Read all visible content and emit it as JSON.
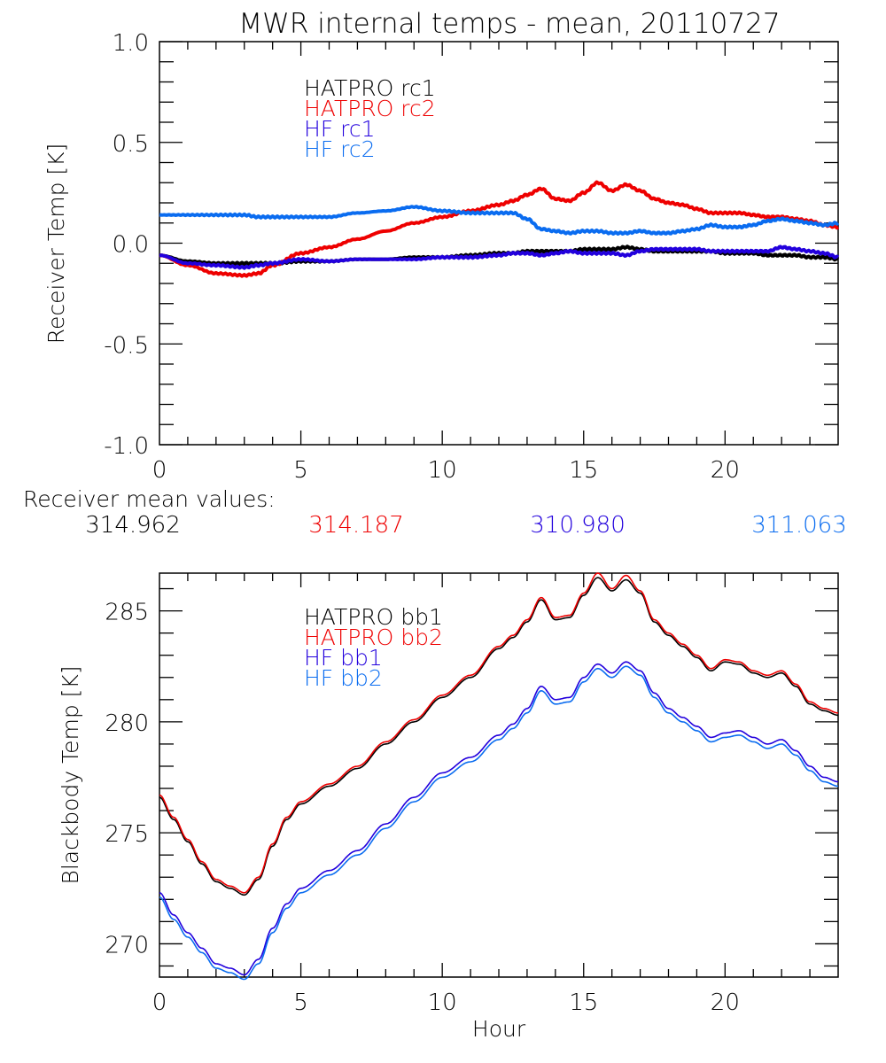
{
  "figure": {
    "title": "MWR internal temps - mean, 20110727",
    "receiver_mean_label": "Receiver mean values:",
    "receiver_means": [
      {
        "value": "314.962",
        "color": "#000000"
      },
      {
        "value": "314.187",
        "color": "#ee0000"
      },
      {
        "value": "310.980",
        "color": "#2200dd"
      },
      {
        "value": "311.063",
        "color": "#0a6cf0"
      }
    ]
  },
  "chart_data": [
    {
      "type": "line",
      "title": "MWR internal temps - mean, 20110727",
      "xlabel": "",
      "ylabel": "Receiver Temp [K]",
      "xlim": [
        0,
        24
      ],
      "ylim": [
        -1.0,
        1.0
      ],
      "xticks": [
        0,
        5,
        10,
        15,
        20
      ],
      "xtick_labels": [
        "0",
        "5",
        "10",
        "15",
        "20"
      ],
      "yticks": [
        -1.0,
        -0.5,
        0.0,
        0.5,
        1.0
      ],
      "ytick_labels": [
        "-1.0",
        "-0.5",
        "0.0",
        "0.5",
        "1.0"
      ],
      "grid": false,
      "legend_position": "top-left-center",
      "x": [
        0,
        1,
        2,
        3,
        3.5,
        4,
        5,
        6,
        7,
        8,
        9,
        10,
        11,
        12,
        12.5,
        13,
        13.5,
        14,
        14.5,
        15,
        15.5,
        16,
        16.5,
        17,
        17.5,
        18,
        18.5,
        19,
        19.5,
        20,
        20.5,
        21,
        21.5,
        22,
        22.5,
        23,
        23.5,
        24
      ],
      "series": [
        {
          "name": "HATPRO rc1",
          "color": "#000000",
          "values": [
            -0.06,
            -0.09,
            -0.1,
            -0.1,
            -0.1,
            -0.1,
            -0.09,
            -0.09,
            -0.08,
            -0.08,
            -0.07,
            -0.07,
            -0.06,
            -0.05,
            -0.05,
            -0.04,
            -0.04,
            -0.04,
            -0.04,
            -0.03,
            -0.03,
            -0.03,
            -0.02,
            -0.03,
            -0.04,
            -0.04,
            -0.04,
            -0.04,
            -0.04,
            -0.05,
            -0.05,
            -0.05,
            -0.06,
            -0.06,
            -0.06,
            -0.07,
            -0.07,
            -0.08
          ]
        },
        {
          "name": "HATPRO rc2",
          "color": "#ee0000",
          "values": [
            -0.06,
            -0.11,
            -0.15,
            -0.16,
            -0.15,
            -0.11,
            -0.05,
            -0.02,
            0.02,
            0.06,
            0.1,
            0.13,
            0.16,
            0.19,
            0.21,
            0.24,
            0.27,
            0.22,
            0.21,
            0.25,
            0.3,
            0.26,
            0.29,
            0.26,
            0.22,
            0.2,
            0.19,
            0.17,
            0.15,
            0.15,
            0.15,
            0.14,
            0.13,
            0.13,
            0.12,
            0.11,
            0.09,
            0.08
          ]
        },
        {
          "name": "HF rc1",
          "color": "#2200dd",
          "values": [
            -0.06,
            -0.1,
            -0.11,
            -0.12,
            -0.11,
            -0.1,
            -0.08,
            -0.09,
            -0.08,
            -0.08,
            -0.08,
            -0.07,
            -0.07,
            -0.06,
            -0.05,
            -0.05,
            -0.06,
            -0.05,
            -0.04,
            -0.05,
            -0.05,
            -0.05,
            -0.06,
            -0.04,
            -0.03,
            -0.03,
            -0.03,
            -0.03,
            -0.04,
            -0.04,
            -0.04,
            -0.04,
            -0.04,
            -0.02,
            -0.03,
            -0.04,
            -0.05,
            -0.07
          ]
        },
        {
          "name": "HF rc2",
          "color": "#0a6cf0",
          "values": [
            0.14,
            0.14,
            0.14,
            0.14,
            0.13,
            0.13,
            0.13,
            0.13,
            0.15,
            0.16,
            0.18,
            0.16,
            0.15,
            0.15,
            0.15,
            0.12,
            0.07,
            0.06,
            0.05,
            0.06,
            0.06,
            0.05,
            0.05,
            0.06,
            0.05,
            0.05,
            0.06,
            0.07,
            0.09,
            0.08,
            0.08,
            0.09,
            0.11,
            0.12,
            0.11,
            0.1,
            0.09,
            0.1
          ]
        }
      ]
    },
    {
      "type": "line",
      "title": "",
      "xlabel": "Hour",
      "ylabel": "Blackbody Temp [K]",
      "xlim": [
        0,
        24
      ],
      "ylim": [
        268.5,
        286.7
      ],
      "xticks": [
        0,
        5,
        10,
        15,
        20
      ],
      "xtick_labels": [
        "0",
        "5",
        "10",
        "15",
        "20"
      ],
      "yticks": [
        270,
        275,
        280,
        285
      ],
      "ytick_labels": [
        "270",
        "275",
        "280",
        "285"
      ],
      "grid": false,
      "legend_position": "top-left-center",
      "x": [
        0,
        0.5,
        1,
        1.5,
        2,
        2.5,
        3,
        3.5,
        4,
        4.5,
        5,
        6,
        7,
        8,
        9,
        10,
        11,
        12,
        12.5,
        13,
        13.5,
        14,
        14.5,
        15,
        15.5,
        16,
        16.5,
        17,
        17.5,
        18,
        18.5,
        19,
        19.5,
        20,
        20.5,
        21,
        21.5,
        22,
        22.5,
        23,
        23.5,
        24
      ],
      "series": [
        {
          "name": "HATPRO bb1",
          "color": "#000000",
          "values": [
            276.6,
            275.6,
            274.6,
            273.6,
            272.8,
            272.5,
            272.2,
            272.9,
            274.4,
            275.6,
            276.3,
            277.1,
            277.9,
            279.0,
            280.0,
            281.1,
            282.0,
            283.3,
            283.8,
            284.5,
            285.5,
            284.6,
            284.7,
            285.7,
            286.5,
            285.9,
            286.4,
            285.8,
            284.5,
            283.9,
            283.4,
            282.9,
            282.3,
            282.7,
            282.6,
            282.2,
            282.0,
            282.2,
            281.6,
            280.8,
            280.5,
            280.3
          ]
        },
        {
          "name": "HATPRO bb2",
          "color": "#ee0000",
          "values": [
            276.7,
            275.7,
            274.7,
            273.7,
            272.9,
            272.6,
            272.3,
            273.0,
            274.5,
            275.7,
            276.4,
            277.2,
            278.0,
            279.1,
            280.1,
            281.2,
            282.1,
            283.4,
            283.9,
            284.6,
            285.6,
            284.7,
            284.8,
            285.8,
            286.7,
            286.0,
            286.6,
            285.9,
            284.6,
            284.0,
            283.5,
            283.0,
            282.4,
            282.8,
            282.7,
            282.3,
            282.1,
            282.3,
            281.7,
            280.9,
            280.6,
            280.4
          ]
        },
        {
          "name": "HF bb1",
          "color": "#2200dd",
          "values": [
            272.3,
            271.3,
            270.5,
            269.8,
            269.1,
            268.9,
            268.6,
            269.3,
            270.7,
            271.8,
            272.5,
            273.3,
            274.2,
            275.4,
            276.6,
            277.7,
            278.4,
            279.4,
            279.9,
            280.6,
            281.6,
            281.0,
            281.1,
            282.0,
            282.6,
            282.2,
            282.7,
            282.3,
            281.3,
            280.6,
            280.2,
            279.8,
            279.3,
            279.5,
            279.6,
            279.3,
            279.0,
            279.2,
            278.7,
            278.0,
            277.5,
            277.3
          ]
        },
        {
          "name": "HF bb2",
          "color": "#0a6cf0",
          "values": [
            272.1,
            271.1,
            270.3,
            269.6,
            268.9,
            268.7,
            268.4,
            269.1,
            270.5,
            271.6,
            272.3,
            273.1,
            274.0,
            275.2,
            276.4,
            277.5,
            278.2,
            279.2,
            279.7,
            280.4,
            281.4,
            280.8,
            280.9,
            281.8,
            282.4,
            282.0,
            282.5,
            282.1,
            281.1,
            280.4,
            280.0,
            279.6,
            279.1,
            279.3,
            279.4,
            279.1,
            278.8,
            279.0,
            278.5,
            277.8,
            277.3,
            277.1
          ]
        }
      ]
    }
  ]
}
